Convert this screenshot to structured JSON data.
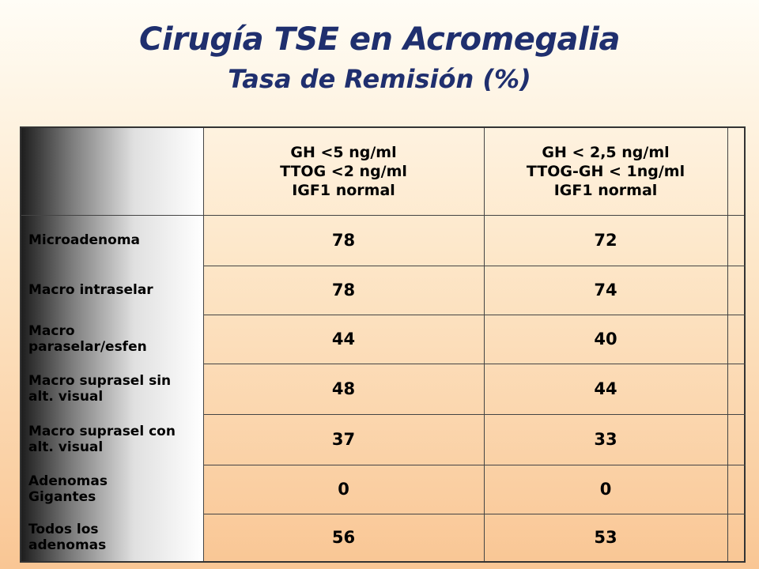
{
  "title": "Cirugía TSE en Acromegalia",
  "subtitle": "Tasa de Remisión (%)",
  "table": {
    "columns": [
      {
        "lines": [
          "GH <5 ng/ml",
          "TTOG <2 ng/ml",
          "IGF1 normal"
        ]
      },
      {
        "lines": [
          "GH < 2,5 ng/ml",
          "TTOG-GH < 1ng/ml",
          "IGF1 normal"
        ]
      }
    ],
    "rows": [
      {
        "label": "Microadenoma",
        "values": [
          "78",
          "72"
        ]
      },
      {
        "label": "Macro intraselar",
        "values": [
          "78",
          "74"
        ]
      },
      {
        "label": "Macro paraselar/esfen",
        "values": [
          "44",
          "40"
        ]
      },
      {
        "label": "Macro suprasel sin alt. visual",
        "values": [
          "48",
          "44"
        ]
      },
      {
        "label": "Macro suprasel con alt. visual",
        "values": [
          "37",
          "33"
        ]
      },
      {
        "label": "Adenomas Gigantes",
        "values": [
          "0",
          "0"
        ]
      },
      {
        "label": "Todos los adenomas",
        "values": [
          "56",
          "53"
        ]
      }
    ]
  }
}
